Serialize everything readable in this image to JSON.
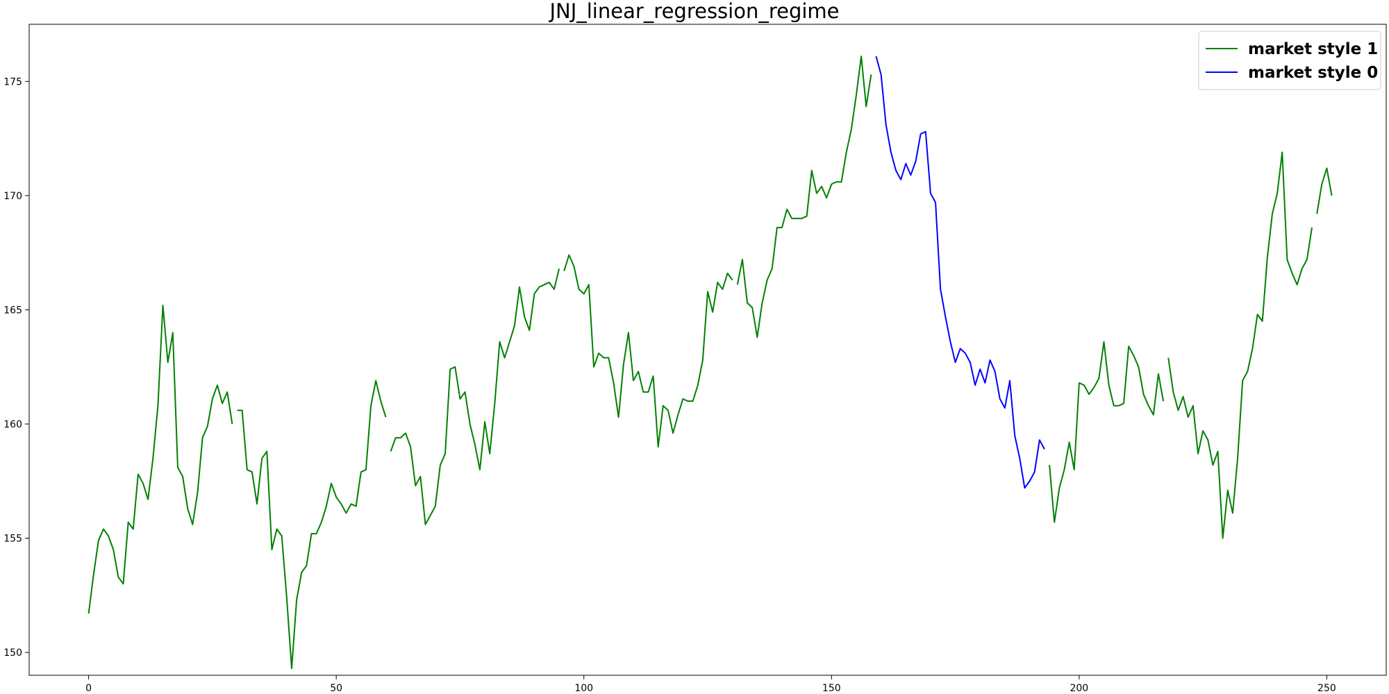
{
  "chart_data": {
    "type": "line",
    "title": "JNJ_linear_regression_regime",
    "xlabel": "",
    "ylabel": "",
    "xlim": [
      -12,
      262
    ],
    "ylim": [
      149,
      177.5
    ],
    "x_ticks": [
      0,
      50,
      100,
      150,
      200,
      250
    ],
    "y_ticks": [
      150,
      155,
      160,
      165,
      170,
      175
    ],
    "grid": false,
    "legend_position": "top-right",
    "series": [
      {
        "name": "market style 1",
        "color": "#008000",
        "segments": [
          [
            [
              0,
              151.7
            ],
            [
              1,
              153.4
            ],
            [
              2,
              154.9
            ],
            [
              3,
              155.4
            ],
            [
              4,
              155.1
            ],
            [
              5,
              154.5
            ],
            [
              6,
              153.3
            ],
            [
              7,
              153.0
            ],
            [
              8,
              155.7
            ],
            [
              9,
              155.4
            ],
            [
              10,
              157.8
            ],
            [
              11,
              157.4
            ],
            [
              12,
              156.7
            ],
            [
              13,
              158.5
            ],
            [
              14,
              160.8
            ],
            [
              15,
              165.2
            ],
            [
              16,
              162.7
            ],
            [
              17,
              164.0
            ],
            [
              18,
              158.1
            ],
            [
              19,
              157.7
            ],
            [
              20,
              156.3
            ],
            [
              21,
              155.6
            ],
            [
              22,
              157.0
            ],
            [
              23,
              159.4
            ],
            [
              24,
              159.9
            ],
            [
              25,
              161.1
            ],
            [
              26,
              161.7
            ],
            [
              27,
              160.9
            ],
            [
              28,
              161.4
            ],
            [
              29,
              160.0
            ]
          ],
          [
            [
              30,
              160.6
            ],
            [
              31,
              160.6
            ],
            [
              32,
              158.0
            ],
            [
              33,
              157.9
            ],
            [
              34,
              156.5
            ],
            [
              35,
              158.5
            ],
            [
              36,
              158.8
            ],
            [
              37,
              154.5
            ],
            [
              38,
              155.4
            ],
            [
              39,
              155.1
            ],
            [
              40,
              152.4
            ],
            [
              41,
              149.3
            ],
            [
              42,
              152.3
            ],
            [
              43,
              153.5
            ],
            [
              44,
              153.8
            ],
            [
              45,
              155.2
            ],
            [
              46,
              155.2
            ],
            [
              47,
              155.7
            ],
            [
              48,
              156.4
            ],
            [
              49,
              157.4
            ],
            [
              50,
              156.8
            ],
            [
              51,
              156.5
            ],
            [
              52,
              156.1
            ],
            [
              53,
              156.5
            ],
            [
              54,
              156.4
            ],
            [
              55,
              157.9
            ],
            [
              56,
              158.0
            ],
            [
              57,
              160.8
            ],
            [
              58,
              161.9
            ],
            [
              59,
              161.0
            ],
            [
              60,
              160.3
            ]
          ],
          [
            [
              61,
              158.8
            ],
            [
              62,
              159.4
            ],
            [
              63,
              159.4
            ],
            [
              64,
              159.6
            ],
            [
              65,
              159.0
            ],
            [
              66,
              157.3
            ],
            [
              67,
              157.7
            ],
            [
              68,
              155.6
            ],
            [
              69,
              156.0
            ],
            [
              70,
              156.4
            ],
            [
              71,
              158.2
            ],
            [
              72,
              158.7
            ],
            [
              73,
              162.4
            ],
            [
              74,
              162.5
            ],
            [
              75,
              161.1
            ],
            [
              76,
              161.4
            ],
            [
              77,
              160.0
            ],
            [
              78,
              159.1
            ],
            [
              79,
              158.0
            ],
            [
              80,
              160.1
            ],
            [
              81,
              158.7
            ],
            [
              82,
              160.9
            ],
            [
              83,
              163.6
            ],
            [
              84,
              162.9
            ],
            [
              85,
              163.6
            ],
            [
              86,
              164.3
            ],
            [
              87,
              166.0
            ],
            [
              88,
              164.7
            ],
            [
              89,
              164.1
            ],
            [
              90,
              165.7
            ],
            [
              91,
              166.0
            ],
            [
              92,
              166.1
            ],
            [
              93,
              166.2
            ],
            [
              94,
              165.9
            ],
            [
              95,
              166.8
            ]
          ],
          [
            [
              96,
              166.7
            ],
            [
              97,
              167.4
            ],
            [
              98,
              166.9
            ],
            [
              99,
              165.9
            ],
            [
              100,
              165.7
            ],
            [
              101,
              166.1
            ],
            [
              102,
              162.5
            ],
            [
              103,
              163.1
            ],
            [
              104,
              162.9
            ],
            [
              105,
              162.9
            ],
            [
              106,
              161.8
            ],
            [
              107,
              160.3
            ],
            [
              108,
              162.6
            ],
            [
              109,
              164.0
            ],
            [
              110,
              161.9
            ],
            [
              111,
              162.3
            ],
            [
              112,
              161.4
            ],
            [
              113,
              161.4
            ],
            [
              114,
              162.1
            ],
            [
              115,
              159.0
            ],
            [
              116,
              160.8
            ],
            [
              117,
              160.6
            ],
            [
              118,
              159.6
            ],
            [
              119,
              160.4
            ],
            [
              120,
              161.1
            ],
            [
              121,
              161.0
            ],
            [
              122,
              161.0
            ],
            [
              123,
              161.7
            ],
            [
              124,
              162.8
            ],
            [
              125,
              165.8
            ],
            [
              126,
              164.9
            ],
            [
              127,
              166.2
            ],
            [
              128,
              165.9
            ],
            [
              129,
              166.6
            ],
            [
              130,
              166.3
            ]
          ],
          [
            [
              131,
              166.1
            ],
            [
              132,
              167.2
            ],
            [
              133,
              165.3
            ],
            [
              134,
              165.1
            ],
            [
              135,
              163.8
            ],
            [
              136,
              165.3
            ],
            [
              137,
              166.3
            ],
            [
              138,
              166.8
            ],
            [
              139,
              168.6
            ],
            [
              140,
              168.6
            ],
            [
              141,
              169.4
            ],
            [
              142,
              169.0
            ],
            [
              143,
              169.0
            ],
            [
              144,
              169.0
            ],
            [
              145,
              169.1
            ],
            [
              146,
              171.1
            ],
            [
              147,
              170.1
            ],
            [
              148,
              170.4
            ],
            [
              149,
              169.9
            ],
            [
              150,
              170.5
            ],
            [
              151,
              170.6
            ],
            [
              152,
              170.6
            ],
            [
              153,
              171.9
            ],
            [
              154,
              172.9
            ],
            [
              155,
              174.4
            ],
            [
              156,
              176.1
            ],
            [
              157,
              173.9
            ],
            [
              158,
              175.3
            ]
          ],
          [
            [
              194,
              158.2
            ],
            [
              195,
              155.7
            ],
            [
              196,
              157.2
            ],
            [
              197,
              158.0
            ],
            [
              198,
              159.2
            ],
            [
              199,
              158.0
            ],
            [
              200,
              161.8
            ],
            [
              201,
              161.7
            ],
            [
              202,
              161.3
            ],
            [
              203,
              161.6
            ],
            [
              204,
              162.0
            ],
            [
              205,
              163.6
            ],
            [
              206,
              161.7
            ],
            [
              207,
              160.8
            ],
            [
              208,
              160.8
            ],
            [
              209,
              160.9
            ],
            [
              210,
              163.4
            ],
            [
              211,
              163.0
            ],
            [
              212,
              162.5
            ],
            [
              213,
              161.3
            ],
            [
              214,
              160.8
            ],
            [
              215,
              160.4
            ],
            [
              216,
              162.2
            ],
            [
              217,
              161.0
            ]
          ],
          [
            [
              218,
              162.9
            ],
            [
              219,
              161.4
            ],
            [
              220,
              160.6
            ],
            [
              221,
              161.2
            ],
            [
              222,
              160.3
            ],
            [
              223,
              160.8
            ],
            [
              224,
              158.7
            ],
            [
              225,
              159.7
            ],
            [
              226,
              159.3
            ],
            [
              227,
              158.2
            ],
            [
              228,
              158.8
            ],
            [
              229,
              155.0
            ],
            [
              230,
              157.1
            ],
            [
              231,
              156.1
            ],
            [
              232,
              158.5
            ],
            [
              233,
              161.9
            ],
            [
              234,
              162.3
            ],
            [
              235,
              163.3
            ],
            [
              236,
              164.8
            ],
            [
              237,
              164.5
            ],
            [
              238,
              167.3
            ],
            [
              239,
              169.2
            ],
            [
              240,
              170.1
            ],
            [
              241,
              171.9
            ],
            [
              242,
              167.2
            ],
            [
              243,
              166.6
            ],
            [
              244,
              166.1
            ],
            [
              245,
              166.8
            ],
            [
              246,
              167.2
            ],
            [
              247,
              168.6
            ]
          ],
          [
            [
              248,
              169.2
            ],
            [
              249,
              170.5
            ],
            [
              250,
              171.2
            ],
            [
              251,
              170.0
            ]
          ]
        ]
      },
      {
        "name": "market style 0",
        "color": "#0000ff",
        "segments": [
          [
            [
              159,
              176.1
            ],
            [
              160,
              175.3
            ],
            [
              161,
              173.1
            ],
            [
              162,
              171.9
            ],
            [
              163,
              171.1
            ],
            [
              164,
              170.7
            ],
            [
              165,
              171.4
            ],
            [
              166,
              170.9
            ],
            [
              167,
              171.5
            ],
            [
              168,
              172.7
            ],
            [
              169,
              172.8
            ],
            [
              170,
              170.1
            ],
            [
              171,
              169.7
            ],
            [
              172,
              165.9
            ],
            [
              173,
              164.7
            ],
            [
              174,
              163.6
            ],
            [
              175,
              162.7
            ],
            [
              176,
              163.3
            ],
            [
              177,
              163.1
            ],
            [
              178,
              162.7
            ],
            [
              179,
              161.7
            ],
            [
              180,
              162.4
            ],
            [
              181,
              161.8
            ],
            [
              182,
              162.8
            ],
            [
              183,
              162.3
            ],
            [
              184,
              161.1
            ],
            [
              185,
              160.7
            ],
            [
              186,
              161.9
            ],
            [
              187,
              159.5
            ],
            [
              188,
              158.5
            ],
            [
              189,
              157.2
            ],
            [
              190,
              157.5
            ],
            [
              191,
              157.9
            ],
            [
              192,
              159.3
            ],
            [
              193,
              158.9
            ]
          ]
        ]
      }
    ]
  }
}
